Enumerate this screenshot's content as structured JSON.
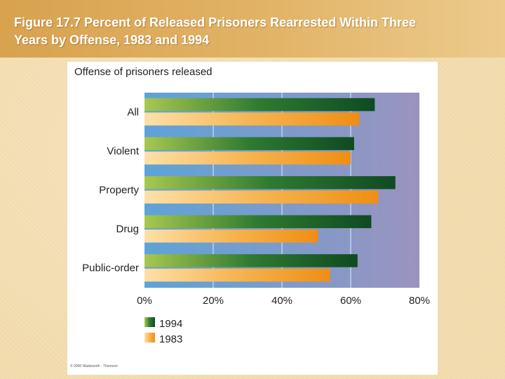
{
  "slide": {
    "title": "Figure 17.7 Percent of Released Prisoners  Rearrested Within Three\nYears by Offense, 1983 and 1994",
    "copyright": "© 2000 Wadsworth - Thomson"
  },
  "colors": {
    "title_band": "#dca85a",
    "slide_background": "#f3ddb0",
    "plot_bg_left": "#5ea3d7",
    "plot_bg_right": "#9b93bf",
    "bar_1994_light": "#a8c850",
    "bar_1994_dark": "#0f4a22",
    "bar_1983_light": "#fde0a8",
    "bar_1983_dark": "#ef8e12"
  },
  "chart_data": {
    "type": "bar",
    "orientation": "horizontal",
    "title": "Offense of prisoners released",
    "categories": [
      "All",
      "Violent",
      "Property",
      "Drug",
      "Public-order"
    ],
    "series": [
      {
        "name": "1994",
        "values": [
          67,
          61,
          73,
          66,
          62
        ],
        "color_key": "1994"
      },
      {
        "name": "1983",
        "values": [
          62.5,
          60,
          68,
          50.5,
          54
        ],
        "color_key": "1983"
      }
    ],
    "xlim": [
      0,
      80
    ],
    "xticks": [
      0,
      20,
      40,
      60,
      80
    ],
    "tick_suffix": "%",
    "grid": true,
    "legend_position": "bottom-left"
  }
}
